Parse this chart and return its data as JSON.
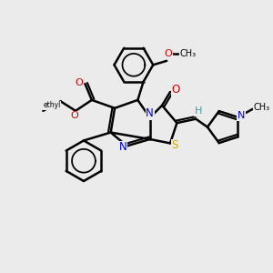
{
  "bg_color": "#ebebeb",
  "atom_colors": {
    "C": "#000000",
    "N": "#0000cc",
    "O": "#cc0000",
    "S": "#ccaa00",
    "H": "#4499aa"
  },
  "bond_color": "#000000",
  "bond_width": 1.8,
  "figsize": [
    3.0,
    3.0
  ],
  "dpi": 100,
  "xlim": [
    0,
    10
  ],
  "ylim": [
    0,
    10
  ]
}
